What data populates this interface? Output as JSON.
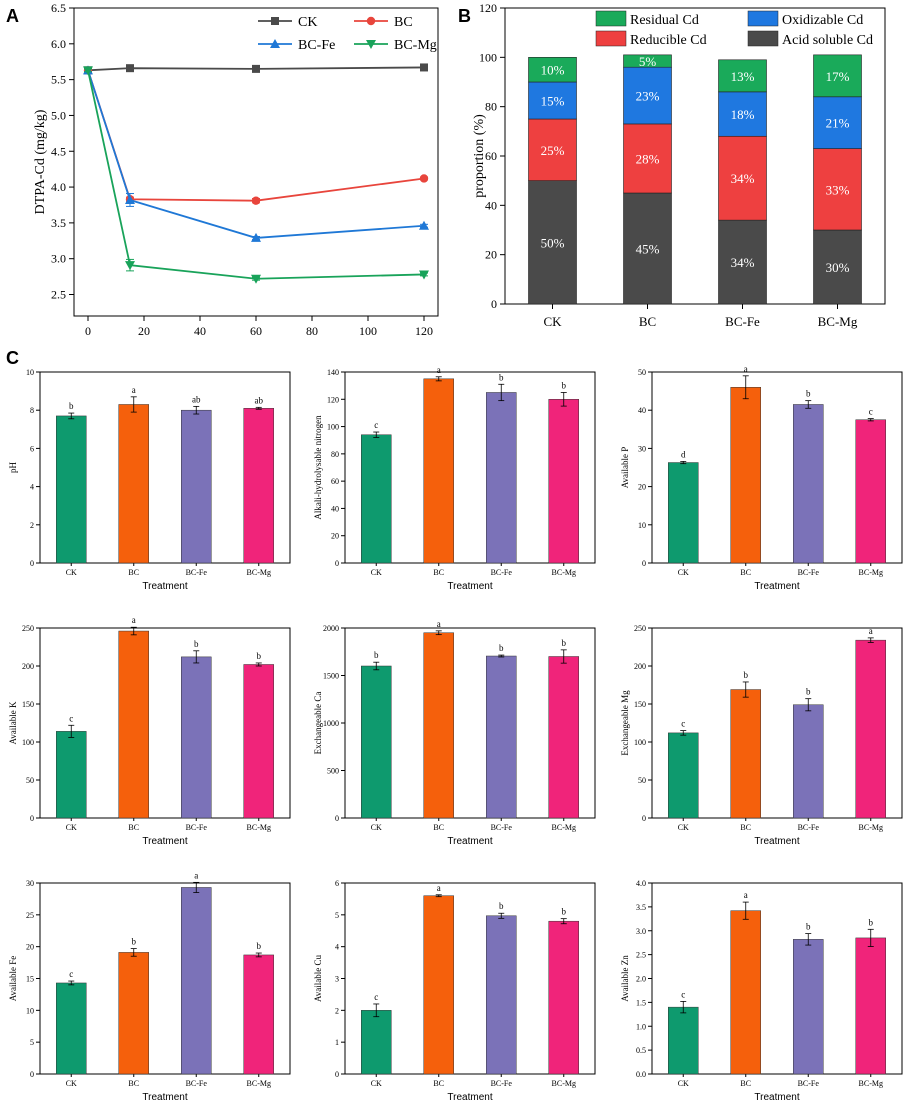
{
  "panel_labels": {
    "a": "A",
    "b": "B",
    "c": "C"
  },
  "colors": {
    "CK": "#4a4a4a",
    "BC": "#e8453c",
    "BC_Fe": "#1f78d6",
    "BC_Mg": "#19a35a",
    "residual": "#1aaa5a",
    "oxidizable": "#1f78e0",
    "reducible": "#ee4040",
    "acid": "#4a4a4a",
    "bar_CK": "#0e9a6e",
    "bar_BC": "#f5600c",
    "bar_BC_Fe": "#7b72b8",
    "bar_BC_Mg": "#f0247a"
  },
  "chart_data": [
    {
      "id": "A",
      "type": "line",
      "title": "",
      "xlabel": "",
      "ylabel": "DTPA-Cd (mg/kg)",
      "xlim": [
        -5,
        125
      ],
      "ylim": [
        2.2,
        6.5
      ],
      "xticks": [
        0,
        20,
        40,
        60,
        80,
        100,
        120
      ],
      "yticks": [
        2.5,
        3.0,
        3.5,
        4.0,
        4.5,
        5.0,
        5.5,
        6.0,
        6.5
      ],
      "ytick_labels": [
        "2.5",
        "3.0",
        "3.5",
        "4.0",
        "4.5",
        "5.0",
        "5.5",
        "6.0",
        "6.5"
      ],
      "legend_position": "top",
      "x": [
        0,
        15,
        60,
        120
      ],
      "series": [
        {
          "name": "CK",
          "marker": "square",
          "values": [
            5.63,
            5.66,
            5.65,
            5.67
          ],
          "err": [
            0.02,
            0.02,
            0.01,
            0.01
          ]
        },
        {
          "name": "BC",
          "marker": "circle",
          "values": [
            5.63,
            3.83,
            3.81,
            4.12
          ],
          "err": [
            0.02,
            0.03,
            0.03,
            0.02
          ]
        },
        {
          "name": "BC-Fe",
          "marker": "triangle-up",
          "values": [
            5.63,
            3.82,
            3.29,
            3.46
          ],
          "err": [
            0.02,
            0.09,
            0.02,
            0.02
          ]
        },
        {
          "name": "BC-Mg",
          "marker": "triangle-down",
          "values": [
            5.63,
            2.91,
            2.72,
            2.78
          ],
          "err": [
            0.02,
            0.08,
            0.02,
            0.02
          ]
        }
      ]
    },
    {
      "id": "B",
      "type": "bar",
      "stacked": true,
      "ylabel": "proportion (%)",
      "ylim": [
        0,
        120
      ],
      "yticks": [
        0,
        20,
        40,
        60,
        80,
        100,
        120
      ],
      "categories": [
        "CK",
        "BC",
        "BC-Fe",
        "BC-Mg"
      ],
      "legend_position": "top",
      "series": [
        {
          "name": "Acid soluble Cd",
          "values": [
            50,
            45,
            34,
            30
          ],
          "labels": [
            "50%",
            "45%",
            "34%",
            "30%"
          ]
        },
        {
          "name": "Reducible Cd",
          "values": [
            25,
            28,
            34,
            33
          ],
          "labels": [
            "25%",
            "28%",
            "34%",
            "33%"
          ]
        },
        {
          "name": "Oxidizable Cd",
          "values": [
            15,
            23,
            18,
            21
          ],
          "labels": [
            "15%",
            "23%",
            "18%",
            "21%"
          ]
        },
        {
          "name": "Residual Cd",
          "values": [
            10,
            5,
            13,
            17
          ],
          "labels": [
            "10%",
            "5%",
            "13%",
            "17%"
          ]
        }
      ],
      "legend_order": [
        "Residual Cd",
        "Oxidizable Cd",
        "Reducible Cd",
        "Acid soluble Cd"
      ]
    },
    {
      "id": "pH",
      "type": "bar",
      "xlabel": "Treatment",
      "ylabel": "pH",
      "categories": [
        "CK",
        "BC",
        "BC-Fe",
        "BC-Mg"
      ],
      "values": [
        7.7,
        8.3,
        8.0,
        8.1
      ],
      "err": [
        0.15,
        0.4,
        0.2,
        0.05
      ],
      "letters": [
        "b",
        "a",
        "ab",
        "ab"
      ],
      "ylim": [
        0,
        10
      ],
      "yticks": [
        0,
        2,
        4,
        6,
        8,
        10
      ]
    },
    {
      "id": "AN",
      "type": "bar",
      "xlabel": "Treatment",
      "ylabel": "Alkali-hydrolysable nitrogen",
      "categories": [
        "CK",
        "BC",
        "BC-Fe",
        "BC-Mg"
      ],
      "values": [
        94,
        135,
        125,
        120
      ],
      "err": [
        2,
        1.5,
        6,
        5
      ],
      "letters": [
        "c",
        "a",
        "b",
        "b"
      ],
      "ylim": [
        0,
        140
      ],
      "yticks": [
        0,
        20,
        40,
        60,
        80,
        100,
        120,
        140
      ]
    },
    {
      "id": "AP",
      "type": "bar",
      "xlabel": "Treatment",
      "ylabel": "Available P",
      "categories": [
        "CK",
        "BC",
        "BC-Fe",
        "BC-Mg"
      ],
      "values": [
        26.3,
        46,
        41.5,
        37.5
      ],
      "err": [
        0.3,
        3,
        1,
        0.3
      ],
      "letters": [
        "d",
        "a",
        "b",
        "c"
      ],
      "ylim": [
        0,
        50
      ],
      "yticks": [
        0,
        10,
        20,
        30,
        40,
        50
      ]
    },
    {
      "id": "AK",
      "type": "bar",
      "xlabel": "Treatment",
      "ylabel": "Available K",
      "categories": [
        "CK",
        "BC",
        "BC-Fe",
        "BC-Mg"
      ],
      "values": [
        114,
        246,
        212,
        202
      ],
      "err": [
        8,
        5,
        8,
        2
      ],
      "letters": [
        "c",
        "a",
        "b",
        "b"
      ],
      "ylim": [
        0,
        250
      ],
      "yticks": [
        0,
        50,
        100,
        150,
        200,
        250
      ]
    },
    {
      "id": "ECa",
      "type": "bar",
      "xlabel": "Treatment",
      "ylabel": "Exchangeable Ca",
      "categories": [
        "CK",
        "BC",
        "BC-Fe",
        "BC-Mg"
      ],
      "values": [
        1600,
        1950,
        1705,
        1700
      ],
      "err": [
        40,
        20,
        10,
        70
      ],
      "letters": [
        "b",
        "a",
        "b",
        "b"
      ],
      "ylim": [
        0,
        2000
      ],
      "yticks": [
        0,
        500,
        1000,
        1500,
        2000
      ]
    },
    {
      "id": "EMg",
      "type": "bar",
      "xlabel": "Treatment",
      "ylabel": "Exchangeable Mg",
      "categories": [
        "CK",
        "BC",
        "BC-Fe",
        "BC-Mg"
      ],
      "values": [
        112,
        169,
        149,
        234
      ],
      "err": [
        3,
        10,
        8,
        3
      ],
      "letters": [
        "c",
        "b",
        "b",
        "a"
      ],
      "ylim": [
        0,
        250
      ],
      "yticks": [
        0,
        50,
        100,
        150,
        200,
        250
      ]
    },
    {
      "id": "AFe",
      "type": "bar",
      "xlabel": "Treatment",
      "ylabel": "Available Fe",
      "categories": [
        "CK",
        "BC",
        "BC-Fe",
        "BC-Mg"
      ],
      "values": [
        14.3,
        19.1,
        29.3,
        18.7
      ],
      "err": [
        0.3,
        0.6,
        0.8,
        0.3
      ],
      "letters": [
        "c",
        "b",
        "a",
        "b"
      ],
      "ylim": [
        0,
        30
      ],
      "yticks": [
        0,
        5,
        10,
        15,
        20,
        25,
        30
      ]
    },
    {
      "id": "ACu",
      "type": "bar",
      "xlabel": "Treatment",
      "ylabel": "Available Cu",
      "categories": [
        "CK",
        "BC",
        "BC-Fe",
        "BC-Mg"
      ],
      "values": [
        2.0,
        5.6,
        4.97,
        4.8
      ],
      "err": [
        0.2,
        0.03,
        0.08,
        0.08
      ],
      "letters": [
        "c",
        "a",
        "b",
        "b"
      ],
      "ylim": [
        0,
        6
      ],
      "yticks": [
        0,
        1,
        2,
        3,
        4,
        5,
        6
      ]
    },
    {
      "id": "AZn",
      "type": "bar",
      "xlabel": "Treatment",
      "ylabel": "Available Zn",
      "categories": [
        "CK",
        "BC",
        "BC-Fe",
        "BC-Mg"
      ],
      "values": [
        1.4,
        3.42,
        2.82,
        2.85
      ],
      "err": [
        0.12,
        0.18,
        0.12,
        0.18
      ],
      "letters": [
        "c",
        "a",
        "b",
        "b"
      ],
      "ylim": [
        0,
        4
      ],
      "yticks": [
        0,
        0.5,
        1,
        1.5,
        2,
        2.5,
        3,
        3.5,
        4
      ],
      "ytick_labels": [
        "0.0",
        "0.5",
        "1.0",
        "1.5",
        "2.0",
        "2.5",
        "3.0",
        "3.5",
        "4.0"
      ]
    }
  ]
}
